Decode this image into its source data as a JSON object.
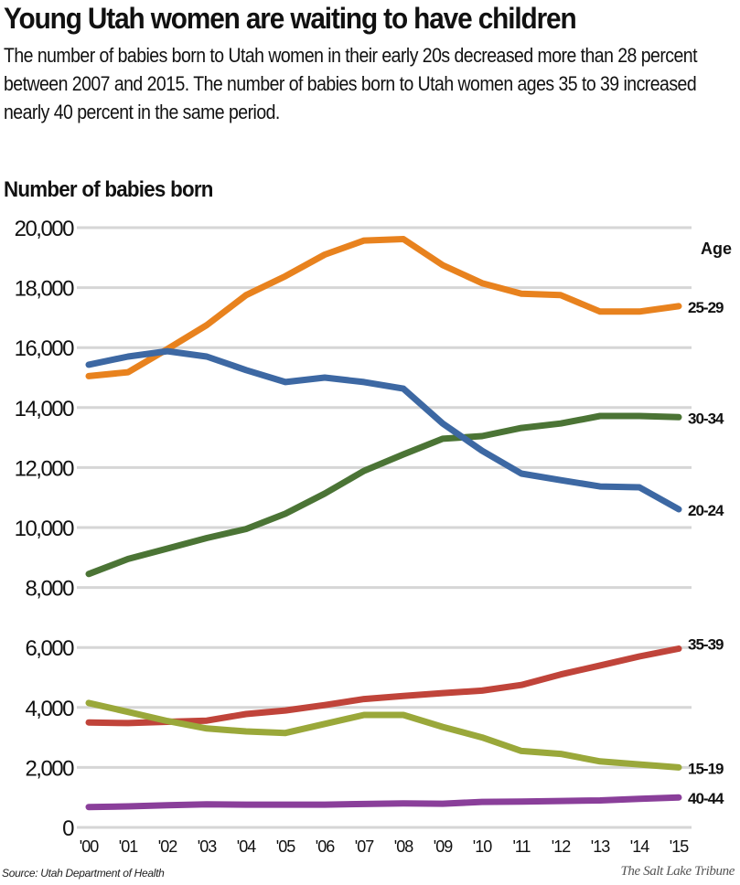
{
  "header": {
    "title": "Young Utah women are waiting to have children",
    "subtitle": "The number of babies born to Utah women in their early 20s decreased more than 28 percent between 2007 and 2015. The number of babies born to Utah women ages 35 to 39 increased nearly 40 percent in the same period.",
    "axis_title": "Number of babies born"
  },
  "footer": {
    "source": "Source: Utah Department of Health",
    "credit": "The Salt Lake Tribune"
  },
  "legend": {
    "title": "Age"
  },
  "chart_data": {
    "type": "line",
    "title": "Young Utah women are waiting to have children",
    "subtitle": "The number of babies born to Utah women in their early 20s decreased more than 28 percent between 2007 and 2015. The number of babies born to Utah women ages 35 to 39 increased nearly 40 percent in the same period.",
    "xlabel": "",
    "ylabel": "Number of babies born",
    "ylim": [
      0,
      20000
    ],
    "yticks": [
      0,
      2000,
      4000,
      6000,
      8000,
      10000,
      12000,
      14000,
      16000,
      18000,
      20000
    ],
    "ytick_labels": [
      "0",
      "2,000",
      "4,000",
      "6,000",
      "8,000",
      "10,000",
      "12,000",
      "14,000",
      "16,000",
      "18,000",
      "20,000"
    ],
    "categories": [
      "'00",
      "'01",
      "'02",
      "'03",
      "'04",
      "'05",
      "'06",
      "'07",
      "'08",
      "'09",
      "'10",
      "'11",
      "'12",
      "'13",
      "'14",
      "'15"
    ],
    "x": [
      2000,
      2001,
      2002,
      2003,
      2004,
      2005,
      2006,
      2007,
      2008,
      2009,
      2010,
      2011,
      2012,
      2013,
      2014,
      2015
    ],
    "grid": true,
    "legend_position": "right, direct labels at line ends",
    "legend_title": "Age",
    "series": [
      {
        "name": "25-29",
        "color": "#e8821e",
        "values": [
          15050,
          15180,
          15950,
          16750,
          17750,
          18380,
          19100,
          19570,
          19620,
          18750,
          18150,
          17800,
          17750,
          17200,
          17200,
          17380
        ]
      },
      {
        "name": "30-34",
        "color": "#4b7435",
        "values": [
          8450,
          8950,
          9300,
          9650,
          9950,
          10460,
          11130,
          11890,
          12440,
          12960,
          13050,
          13320,
          13470,
          13720,
          13720,
          13680
        ]
      },
      {
        "name": "20-24",
        "color": "#3d68a3",
        "values": [
          15430,
          15700,
          15880,
          15700,
          15250,
          14850,
          15000,
          14850,
          14630,
          13470,
          12560,
          11800,
          11580,
          11370,
          11340,
          10610
        ]
      },
      {
        "name": "35-39",
        "color": "#c0443a",
        "values": [
          3500,
          3480,
          3520,
          3560,
          3780,
          3900,
          4080,
          4280,
          4380,
          4480,
          4560,
          4750,
          5100,
          5400,
          5700,
          5960
        ]
      },
      {
        "name": "15-19",
        "color": "#9aa83a",
        "values": [
          4150,
          3850,
          3550,
          3300,
          3200,
          3150,
          3450,
          3750,
          3750,
          3350,
          3000,
          2550,
          2450,
          2200,
          2100,
          2000
        ]
      },
      {
        "name": "40-44",
        "color": "#8a3f9a",
        "values": [
          680,
          700,
          740,
          770,
          760,
          760,
          760,
          780,
          800,
          790,
          850,
          860,
          880,
          900,
          950,
          1000
        ]
      }
    ]
  }
}
